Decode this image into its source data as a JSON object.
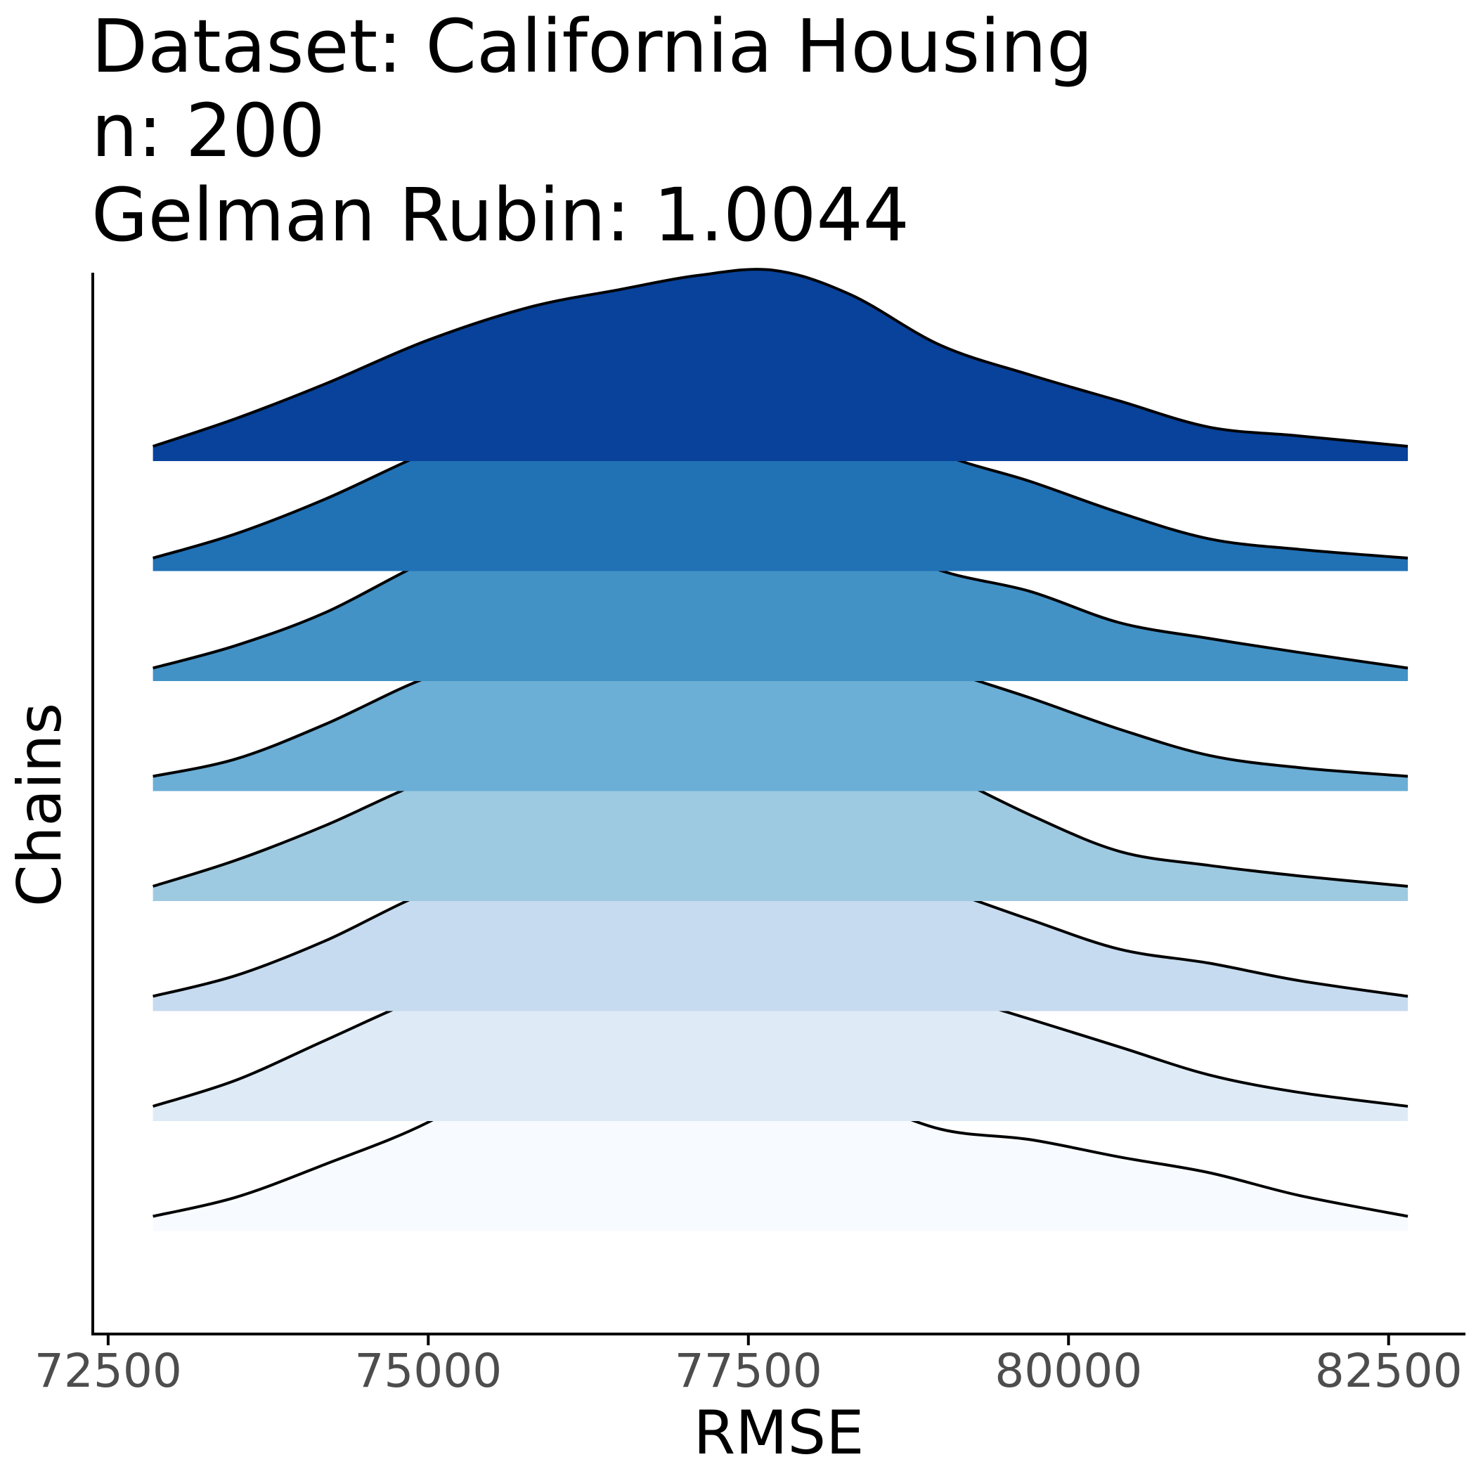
{
  "chart_data": {
    "type": "ridgeline",
    "title_lines": [
      "Dataset: California Housing",
      "n: 200",
      "Gelman Rubin: 1.0044"
    ],
    "xlabel": "RMSE",
    "ylabel": "Chains",
    "x_ticks": [
      72500,
      75000,
      77500,
      80000,
      82500
    ],
    "xlim": [
      72380,
      83100
    ],
    "grid": false,
    "legend": "none",
    "palette": [
      "#08306b",
      "#08519c",
      "#2171b5",
      "#4292c6",
      "#6baed6",
      "#9ecae1",
      "#c6dbef",
      "#deebf7",
      "#f7fbff"
    ],
    "ridge_colors_top_to_bottom": [
      "#08429a",
      "#2171b5",
      "#4292c6",
      "#6baed6",
      "#9ecae1",
      "#c6dbef",
      "#deebf7",
      "#f7fbff"
    ],
    "x": [
      72850,
      73500,
      74200,
      75000,
      75800,
      76500,
      77100,
      77700,
      78300,
      79000,
      79700,
      80400,
      81100,
      81800,
      82650
    ],
    "series": [
      {
        "values": [
          0.02,
          0.18,
          0.38,
          0.63,
          0.82,
          0.92,
          1.0,
          1.03,
          0.89,
          0.6,
          0.43,
          0.28,
          0.13,
          0.08,
          0.02
        ]
      },
      {
        "values": [
          0.01,
          0.15,
          0.35,
          0.62,
          0.85,
          0.92,
          1.0,
          1.0,
          0.88,
          0.61,
          0.45,
          0.27,
          0.12,
          0.06,
          0.01
        ]
      },
      {
        "values": [
          0.01,
          0.14,
          0.33,
          0.63,
          0.87,
          0.91,
          0.93,
          0.96,
          0.79,
          0.57,
          0.45,
          0.27,
          0.18,
          0.1,
          0.01
        ]
      },
      {
        "values": [
          0.02,
          0.12,
          0.32,
          0.59,
          0.76,
          0.84,
          0.94,
          0.95,
          0.84,
          0.64,
          0.47,
          0.29,
          0.14,
          0.07,
          0.02
        ]
      },
      {
        "values": [
          0.02,
          0.17,
          0.37,
          0.63,
          0.8,
          0.93,
          1.0,
          1.04,
          0.91,
          0.68,
          0.43,
          0.22,
          0.14,
          0.08,
          0.02
        ]
      },
      {
        "values": [
          0.02,
          0.14,
          0.34,
          0.62,
          0.8,
          0.87,
          0.92,
          0.9,
          0.81,
          0.64,
          0.46,
          0.29,
          0.21,
          0.11,
          0.02
        ]
      },
      {
        "values": [
          0.02,
          0.17,
          0.4,
          0.66,
          0.86,
          0.94,
          1.0,
          0.95,
          0.77,
          0.67,
          0.52,
          0.36,
          0.2,
          0.1,
          0.02
        ]
      },
      {
        "values": [
          0.02,
          0.13,
          0.32,
          0.56,
          0.91,
          1.0,
          0.91,
          0.83,
          0.71,
          0.52,
          0.46,
          0.36,
          0.27,
          0.14,
          0.02
        ]
      }
    ]
  }
}
